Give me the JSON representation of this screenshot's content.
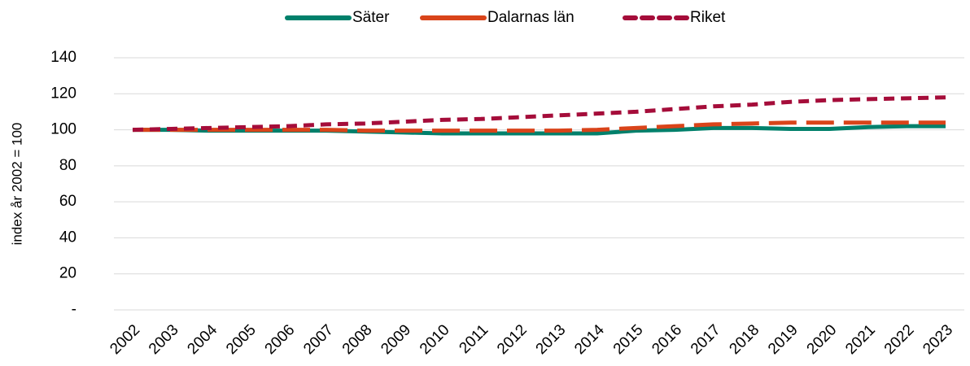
{
  "chart_data": {
    "type": "line",
    "y_label": "index år 2002 = 100",
    "x": [
      "2002",
      "2003",
      "2004",
      "2005",
      "2006",
      "2007",
      "2008",
      "2009",
      "2010",
      "2011",
      "2012",
      "2013",
      "2014",
      "2015",
      "2016",
      "2017",
      "2018",
      "2019",
      "2020",
      "2021",
      "2022",
      "2023"
    ],
    "series": [
      {
        "name": "Säter",
        "color": "#00806b",
        "line_style": "solid",
        "values": [
          100,
          100,
          99.5,
          99.5,
          99.5,
          99.5,
          99,
          98.5,
          98,
          98,
          98,
          98,
          98,
          99.5,
          100,
          101,
          101,
          100.5,
          100.5,
          101.5,
          102,
          102
        ]
      },
      {
        "name": "Dalarnas län",
        "color": "#d9441a",
        "line_style": "long-dash",
        "values": [
          100,
          100,
          100,
          100,
          100,
          100,
          99.5,
          99.5,
          99.5,
          99.5,
          99.5,
          99.5,
          100,
          101,
          102,
          103,
          103.5,
          104,
          104,
          104,
          104,
          104
        ]
      },
      {
        "name": "Riket",
        "color": "#a50d3a",
        "line_style": "dash",
        "values": [
          100,
          100.5,
          101,
          101.5,
          102,
          103,
          103.5,
          104.5,
          105.5,
          106,
          107,
          108,
          109,
          110,
          111.5,
          113,
          114,
          115.5,
          116.5,
          117,
          117.5,
          118
        ]
      }
    ],
    "ylim": [
      0,
      140
    ],
    "yticks": [
      {
        "value": 0,
        "label": "-"
      },
      20,
      40,
      60,
      80,
      100,
      120,
      140
    ],
    "grid": true,
    "legend": "top"
  }
}
